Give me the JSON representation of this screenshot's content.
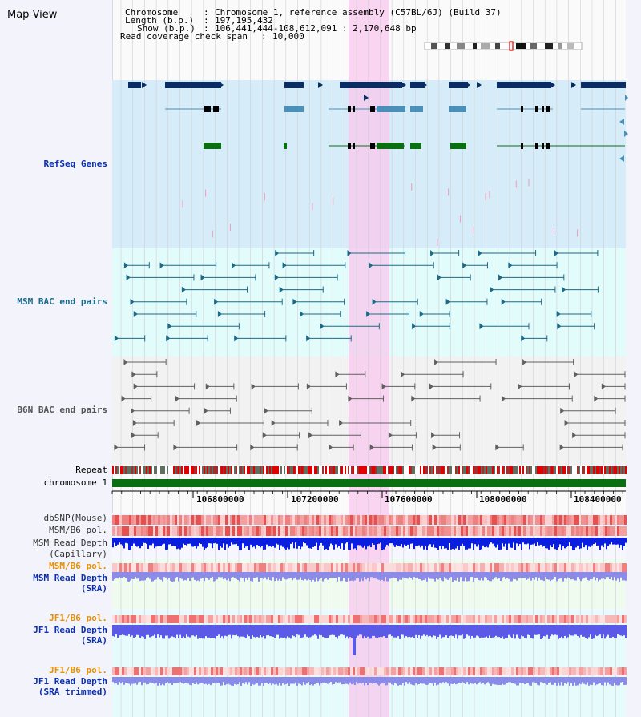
{
  "page": {
    "title": "Map View"
  },
  "header": {
    "chromosome_key": "Chromosome",
    "chromosome_value": "Chromosome 1, reference assembly (C57BL/6J) (Build 37)",
    "length_key": "Length (b.p.)",
    "length_value": "197,195,432",
    "show_key": "Show (b.p.)",
    "show_value": "106,441,444-108,612,091 : 2,170,648 bp",
    "coverage_key": "Read coverage check span",
    "coverage_value": "10,000"
  },
  "tracks": {
    "refseq": "RefSeq Genes",
    "msm_bac": "MSM BAC end pairs",
    "b6n_bac": "B6N BAC end pairs",
    "repeat": "Repeat",
    "chromosome": "chromosome 1",
    "dbsnp": "dbSNP(Mouse)",
    "msm_b6_pol": "MSM/B6 pol.",
    "msm_depth_cap_1": "MSM Read Depth",
    "msm_depth_cap_2": "(Capillary)",
    "msm_b6_pol_2": "MSM/B6 pol.",
    "msm_depth_sra_1": "MSM Read Depth",
    "msm_depth_sra_2": "(SRA)",
    "jf1_b6_pol": "JF1/B6 pol.",
    "jf1_depth_sra_1": "JF1 Read Depth",
    "jf1_depth_sra_2": "(SRA)",
    "jf1_b6_pol_2": "JF1/B6 pol.",
    "jf1_depth_trim_1": "JF1 Read Depth",
    "jf1_depth_trim_2": "(SRA trimmed)"
  },
  "axis": {
    "ticks": [
      "106800000",
      "107200000",
      "107600000",
      "108000000",
      "108400000"
    ]
  },
  "colors": {
    "refseq_bg": "#d6ecf8",
    "bac_bg": "#e2fbfb",
    "b6n_bg": "#f2f2f2",
    "highlight": "#f8c8ee",
    "gene_dark": "#0a2d64",
    "gene_mid": "#4a90b8",
    "gene_green": "#0a6e12",
    "msm_bac": "#1a6a88",
    "b6n_bac": "#606060",
    "chrom_bar": "#0a6e12",
    "label_blue": "#0a2db4",
    "label_teal": "#1a6a88",
    "label_gray": "#555555",
    "label_orange": "#e89000"
  }
}
